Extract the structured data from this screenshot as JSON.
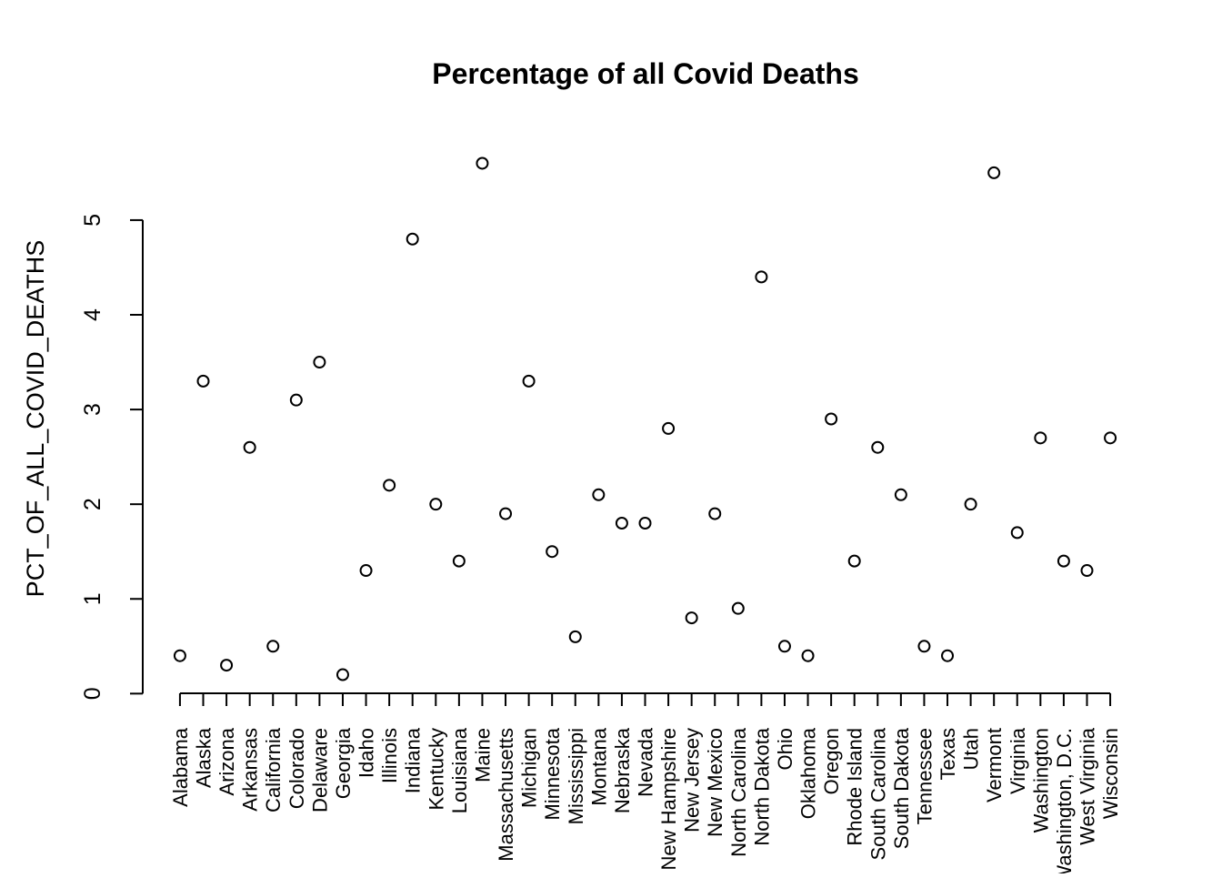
{
  "chart_data": {
    "type": "scatter",
    "title": "Percentage of all Covid Deaths",
    "ylabel": "PCT_OF_ALL_COVID_DEATHS",
    "categories": [
      "Alabama",
      "Alaska",
      "Arizona",
      "Arkansas",
      "California",
      "Colorado",
      "Delaware",
      "Georgia",
      "Idaho",
      "Illinois",
      "Indiana",
      "Kentucky",
      "Louisiana",
      "Maine",
      "Massachusetts",
      "Michigan",
      "Minnesota",
      "Mississippi",
      "Montana",
      "Nebraska",
      "Nevada",
      "New Hampshire",
      "New Jersey",
      "New Mexico",
      "North Carolina",
      "North Dakota",
      "Ohio",
      "Oklahoma",
      "Oregon",
      "Rhode Island",
      "South Carolina",
      "South Dakota",
      "Tennessee",
      "Texas",
      "Utah",
      "Vermont",
      "Virginia",
      "Washington",
      "Washington, D.C.",
      "West Virginia",
      "Wisconsin"
    ],
    "values": [
      0.4,
      3.3,
      0.3,
      2.6,
      0.5,
      3.1,
      3.5,
      0.2,
      1.3,
      2.2,
      4.8,
      2.0,
      1.4,
      5.6,
      1.9,
      3.3,
      1.5,
      0.6,
      2.1,
      1.8,
      1.8,
      2.8,
      0.8,
      1.9,
      0.9,
      4.4,
      0.5,
      0.4,
      2.9,
      1.4,
      2.6,
      2.1,
      0.5,
      0.4,
      2.0,
      5.5,
      1.7,
      2.7,
      1.4,
      1.3,
      2.7
    ],
    "color": "#000000",
    "ylim": [
      -0.016,
      5.816
    ],
    "yticks": [
      0,
      1,
      2,
      3,
      4,
      5
    ]
  }
}
